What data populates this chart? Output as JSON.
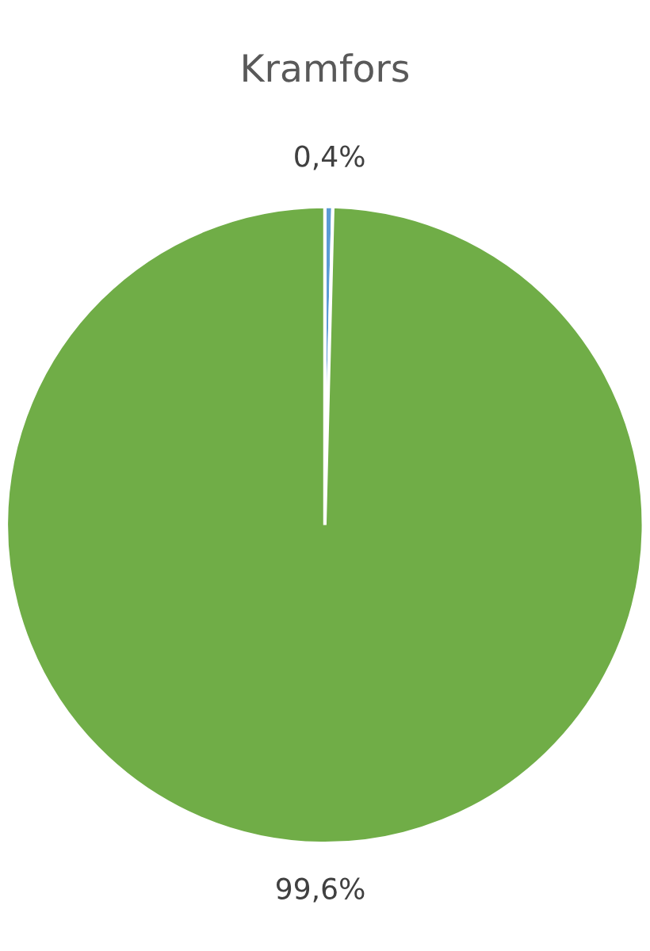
{
  "chart_data": {
    "type": "pie",
    "title": "Kramfors",
    "categories": [
      null,
      null
    ],
    "values": [
      0.4,
      99.6
    ],
    "colors": [
      "#5b9bd5",
      "#70ad47"
    ],
    "value_labels": [
      "0,4%",
      "99,6%"
    ]
  }
}
